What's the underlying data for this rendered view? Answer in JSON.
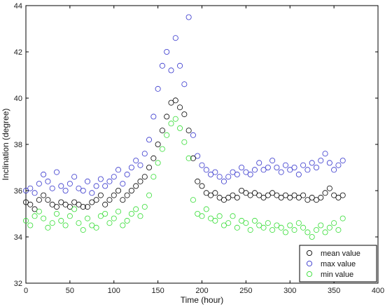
{
  "chart_data": {
    "type": "scatter",
    "title": "",
    "xlabel": "Time (hour)",
    "ylabel": "Inclination (degree)",
    "xlim": [
      0,
      400
    ],
    "ylim": [
      32,
      44
    ],
    "xticks": [
      "0",
      "50",
      "100",
      "150",
      "200",
      "250",
      "300",
      "350",
      "400"
    ],
    "yticks": [
      "32",
      "34",
      "36",
      "38",
      "40",
      "42",
      "44"
    ],
    "grid": false,
    "marker": "open-circle",
    "legend_position": "bottom-right",
    "series": [
      {
        "name": "mean value",
        "color": "#000000",
        "points": [
          [
            0,
            35.5
          ],
          [
            5,
            35.4
          ],
          [
            10,
            35.2
          ],
          [
            15,
            35.6
          ],
          [
            20,
            35.8
          ],
          [
            25,
            35.6
          ],
          [
            30,
            35.4
          ],
          [
            35,
            35.3
          ],
          [
            40,
            35.5
          ],
          [
            45,
            35.4
          ],
          [
            50,
            35.3
          ],
          [
            55,
            35.5
          ],
          [
            60,
            35.4
          ],
          [
            65,
            35.3
          ],
          [
            70,
            35.3
          ],
          [
            75,
            35.5
          ],
          [
            80,
            35.6
          ],
          [
            85,
            35.8
          ],
          [
            90,
            35.4
          ],
          [
            95,
            35.6
          ],
          [
            100,
            35.8
          ],
          [
            105,
            36.0
          ],
          [
            110,
            35.6
          ],
          [
            115,
            35.8
          ],
          [
            120,
            36.0
          ],
          [
            125,
            36.2
          ],
          [
            130,
            36.4
          ],
          [
            135,
            36.6
          ],
          [
            140,
            37.0
          ],
          [
            145,
            37.4
          ],
          [
            150,
            38.0
          ],
          [
            155,
            38.6
          ],
          [
            160,
            39.2
          ],
          [
            165,
            39.8
          ],
          [
            170,
            39.9
          ],
          [
            175,
            39.6
          ],
          [
            180,
            39.3
          ],
          [
            185,
            38.6
          ],
          [
            190,
            37.4
          ],
          [
            195,
            36.4
          ],
          [
            200,
            36.2
          ],
          [
            205,
            35.9
          ],
          [
            210,
            35.8
          ],
          [
            215,
            35.9
          ],
          [
            220,
            35.7
          ],
          [
            225,
            35.6
          ],
          [
            230,
            35.7
          ],
          [
            235,
            35.8
          ],
          [
            240,
            35.7
          ],
          [
            245,
            36.0
          ],
          [
            250,
            35.9
          ],
          [
            255,
            35.8
          ],
          [
            260,
            35.9
          ],
          [
            265,
            35.8
          ],
          [
            270,
            35.7
          ],
          [
            275,
            35.8
          ],
          [
            280,
            35.9
          ],
          [
            285,
            35.8
          ],
          [
            290,
            35.7
          ],
          [
            295,
            35.8
          ],
          [
            300,
            35.7
          ],
          [
            305,
            35.8
          ],
          [
            310,
            35.7
          ],
          [
            315,
            35.8
          ],
          [
            320,
            35.6
          ],
          [
            325,
            35.7
          ],
          [
            330,
            35.6
          ],
          [
            335,
            35.7
          ],
          [
            340,
            35.9
          ],
          [
            345,
            36.1
          ],
          [
            350,
            35.8
          ],
          [
            355,
            35.7
          ],
          [
            360,
            35.8
          ]
        ]
      },
      {
        "name": "max value",
        "color": "#3333cc",
        "points": [
          [
            0,
            36.0
          ],
          [
            5,
            36.1
          ],
          [
            10,
            35.9
          ],
          [
            15,
            36.3
          ],
          [
            20,
            36.7
          ],
          [
            25,
            36.4
          ],
          [
            30,
            36.1
          ],
          [
            35,
            36.8
          ],
          [
            40,
            36.2
          ],
          [
            45,
            36.0
          ],
          [
            50,
            36.3
          ],
          [
            55,
            36.6
          ],
          [
            60,
            36.1
          ],
          [
            65,
            36.0
          ],
          [
            70,
            36.4
          ],
          [
            75,
            35.9
          ],
          [
            80,
            36.2
          ],
          [
            85,
            36.5
          ],
          [
            90,
            36.2
          ],
          [
            95,
            36.4
          ],
          [
            100,
            36.6
          ],
          [
            105,
            36.9
          ],
          [
            110,
            36.3
          ],
          [
            115,
            36.7
          ],
          [
            120,
            37.0
          ],
          [
            125,
            37.3
          ],
          [
            130,
            37.1
          ],
          [
            135,
            37.6
          ],
          [
            140,
            38.2
          ],
          [
            145,
            39.2
          ],
          [
            150,
            40.4
          ],
          [
            155,
            41.4
          ],
          [
            160,
            42.0
          ],
          [
            165,
            41.2
          ],
          [
            170,
            42.6
          ],
          [
            175,
            41.4
          ],
          [
            180,
            40.6
          ],
          [
            185,
            43.5
          ],
          [
            190,
            38.4
          ],
          [
            195,
            37.5
          ],
          [
            200,
            37.1
          ],
          [
            205,
            36.9
          ],
          [
            210,
            36.7
          ],
          [
            215,
            36.8
          ],
          [
            220,
            36.6
          ],
          [
            225,
            36.4
          ],
          [
            230,
            36.6
          ],
          [
            235,
            36.8
          ],
          [
            240,
            36.7
          ],
          [
            245,
            37.0
          ],
          [
            250,
            36.8
          ],
          [
            255,
            36.7
          ],
          [
            260,
            36.9
          ],
          [
            265,
            37.2
          ],
          [
            270,
            36.9
          ],
          [
            275,
            37.0
          ],
          [
            280,
            37.3
          ],
          [
            285,
            37.0
          ],
          [
            290,
            36.8
          ],
          [
            295,
            37.1
          ],
          [
            300,
            36.9
          ],
          [
            305,
            37.0
          ],
          [
            310,
            36.7
          ],
          [
            315,
            37.1
          ],
          [
            320,
            36.9
          ],
          [
            325,
            37.2
          ],
          [
            330,
            37.0
          ],
          [
            335,
            37.3
          ],
          [
            340,
            37.6
          ],
          [
            345,
            37.2
          ],
          [
            350,
            36.9
          ],
          [
            355,
            37.1
          ],
          [
            360,
            37.3
          ]
        ]
      },
      {
        "name": "min value",
        "color": "#33dd33",
        "points": [
          [
            0,
            34.7
          ],
          [
            5,
            34.5
          ],
          [
            10,
            34.9
          ],
          [
            15,
            35.1
          ],
          [
            20,
            34.8
          ],
          [
            25,
            34.4
          ],
          [
            30,
            34.6
          ],
          [
            35,
            35.0
          ],
          [
            40,
            34.7
          ],
          [
            45,
            34.5
          ],
          [
            50,
            34.9
          ],
          [
            55,
            35.2
          ],
          [
            60,
            34.6
          ],
          [
            65,
            34.3
          ],
          [
            70,
            34.8
          ],
          [
            75,
            34.5
          ],
          [
            80,
            34.4
          ],
          [
            85,
            34.9
          ],
          [
            90,
            35.0
          ],
          [
            95,
            34.6
          ],
          [
            100,
            34.8
          ],
          [
            105,
            35.1
          ],
          [
            110,
            34.5
          ],
          [
            115,
            34.7
          ],
          [
            120,
            35.0
          ],
          [
            125,
            35.2
          ],
          [
            130,
            34.9
          ],
          [
            135,
            35.3
          ],
          [
            140,
            35.8
          ],
          [
            145,
            36.6
          ],
          [
            150,
            37.2
          ],
          [
            155,
            37.8
          ],
          [
            160,
            38.4
          ],
          [
            165,
            38.9
          ],
          [
            170,
            39.1
          ],
          [
            175,
            38.7
          ],
          [
            180,
            38.1
          ],
          [
            185,
            37.4
          ],
          [
            190,
            35.6
          ],
          [
            195,
            35.0
          ],
          [
            200,
            34.9
          ],
          [
            205,
            35.2
          ],
          [
            210,
            34.8
          ],
          [
            215,
            34.7
          ],
          [
            220,
            34.9
          ],
          [
            225,
            34.5
          ],
          [
            230,
            34.6
          ],
          [
            235,
            34.9
          ],
          [
            240,
            34.4
          ],
          [
            245,
            34.7
          ],
          [
            250,
            34.6
          ],
          [
            255,
            34.3
          ],
          [
            260,
            34.7
          ],
          [
            265,
            34.5
          ],
          [
            270,
            34.4
          ],
          [
            275,
            34.6
          ],
          [
            280,
            34.3
          ],
          [
            285,
            34.5
          ],
          [
            290,
            34.4
          ],
          [
            295,
            34.2
          ],
          [
            300,
            34.5
          ],
          [
            305,
            34.3
          ],
          [
            310,
            34.6
          ],
          [
            315,
            34.4
          ],
          [
            320,
            34.2
          ],
          [
            325,
            34.0
          ],
          [
            330,
            34.3
          ],
          [
            335,
            34.5
          ],
          [
            340,
            34.2
          ],
          [
            345,
            34.4
          ],
          [
            350,
            34.6
          ],
          [
            355,
            34.3
          ],
          [
            360,
            34.8
          ]
        ]
      }
    ]
  }
}
